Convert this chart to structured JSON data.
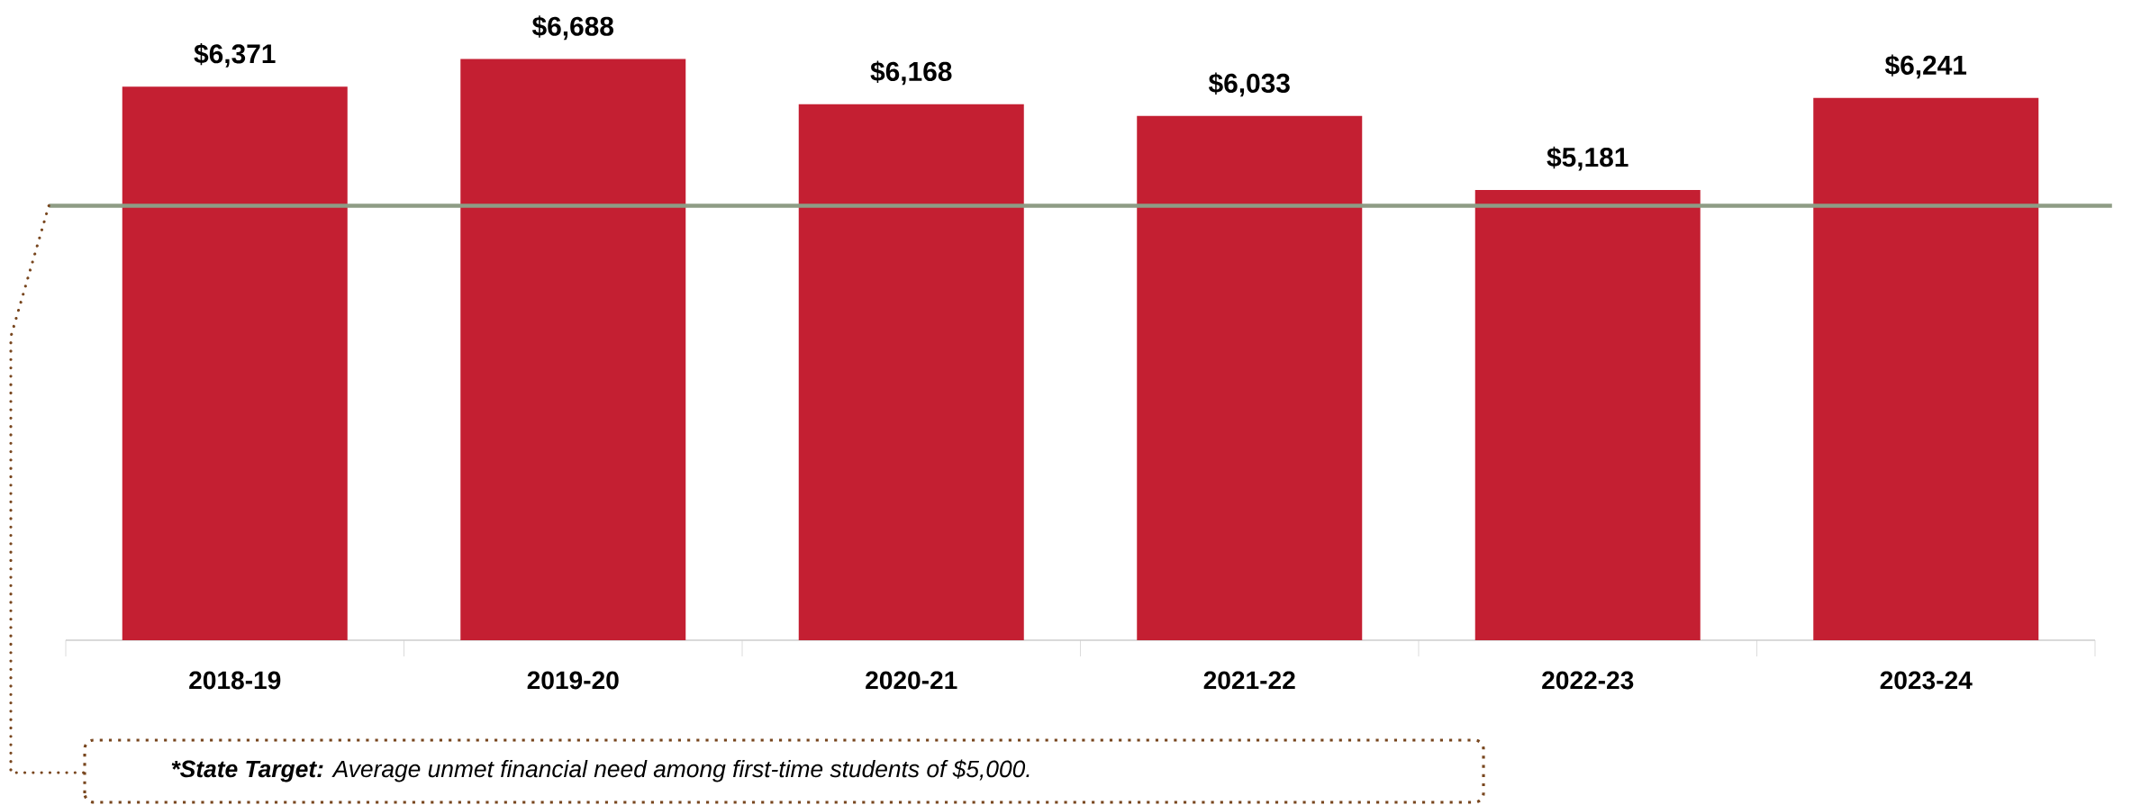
{
  "chart_data": {
    "type": "bar",
    "categories": [
      "2018-19",
      "2019-20",
      "2020-21",
      "2021-22",
      "2022-23",
      "2023-24"
    ],
    "values": [
      6371,
      6688,
      6168,
      6033,
      5181,
      6241
    ],
    "color": "#c41f32",
    "value_labels": [
      "$6,371",
      "$6,688",
      "$6,168",
      "$6,033",
      "$5,181",
      "$6,241"
    ],
    "ref_lines": [
      {
        "axis": "y",
        "value": 5000,
        "color": "#8e9c85"
      }
    ],
    "annotations": [
      "*State Target:",
      "Average unmet financial need among first-time students of $5,000."
    ]
  }
}
